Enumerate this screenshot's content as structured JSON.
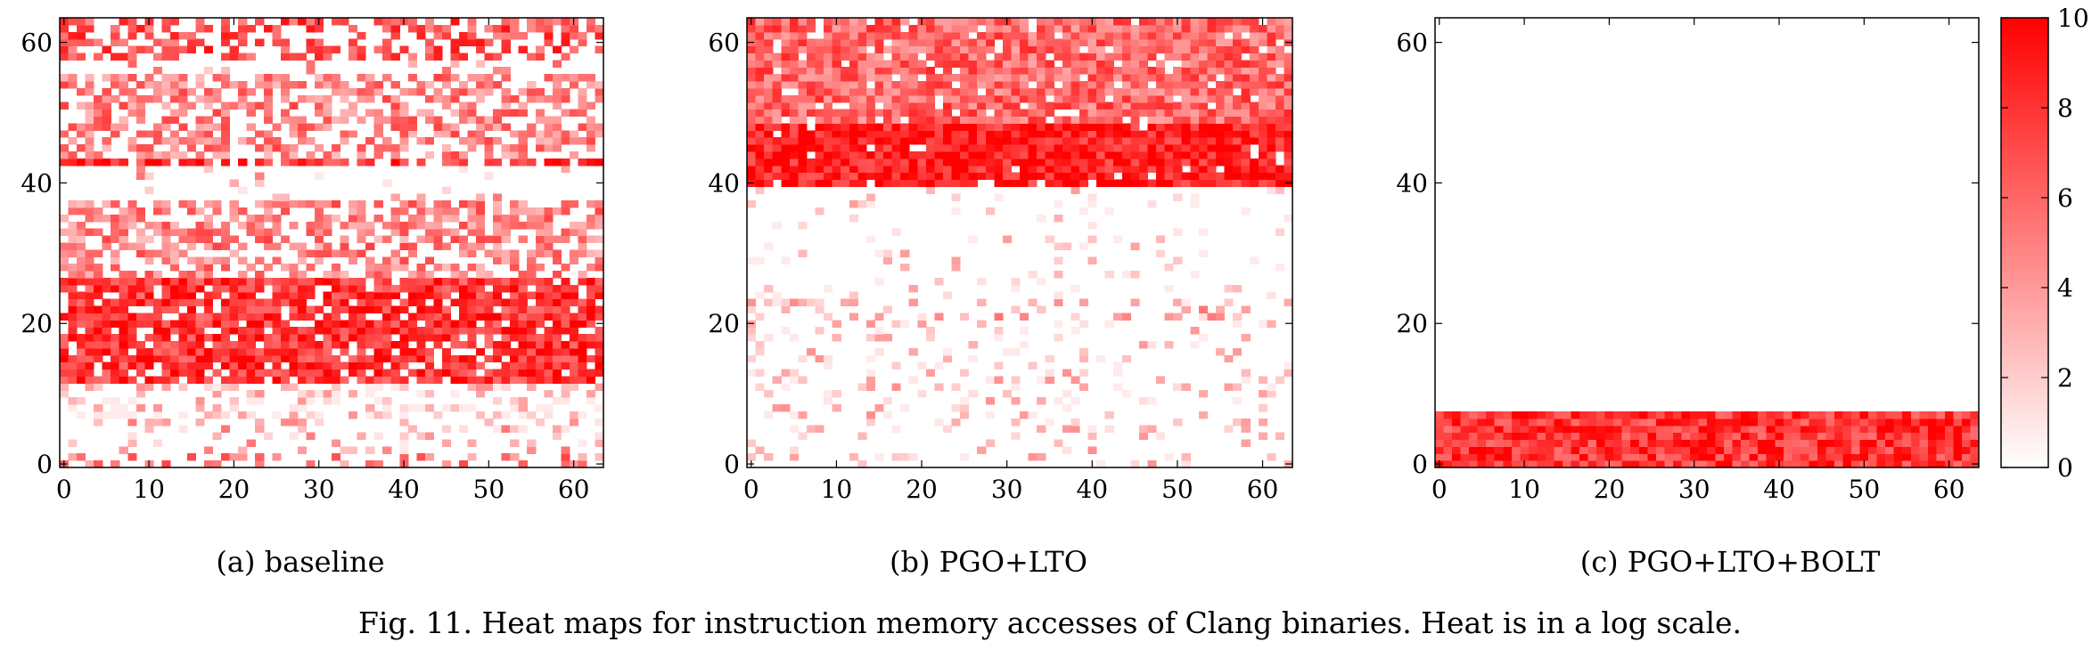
{
  "caption": "Fig. 11.  Heat maps for instruction memory accesses of Clang binaries. Heat is in a log scale.",
  "colorbar": {
    "min": 0,
    "max": 10,
    "ticks": [
      "0",
      "2",
      "4",
      "6",
      "8",
      "10"
    ],
    "low_color": "#ffffff",
    "high_color": "#ff0000"
  },
  "chart_data": [
    {
      "type": "heatmap",
      "subcaption": "(a) baseline",
      "x_range": [
        0,
        63
      ],
      "y_range": [
        0,
        63
      ],
      "x_ticks": [
        "0",
        "10",
        "20",
        "30",
        "40",
        "50",
        "60"
      ],
      "y_ticks": [
        "0",
        "20",
        "40",
        "60"
      ],
      "value_range": [
        0,
        10
      ],
      "row_profile": [
        {
          "rows": [
            0,
            1
          ],
          "density": 0.3,
          "mean": 5
        },
        {
          "rows": [
            2,
            6
          ],
          "density": 0.2,
          "mean": 3
        },
        {
          "rows": [
            7,
            11
          ],
          "density": 0.35,
          "mean": 2
        },
        {
          "rows": [
            12,
            26
          ],
          "density": 0.85,
          "mean": 8
        },
        {
          "rows": [
            27,
            37
          ],
          "density": 0.6,
          "mean": 5
        },
        {
          "rows": [
            38,
            42
          ],
          "density": 0.08,
          "mean": 3
        },
        {
          "rows": [
            43,
            43
          ],
          "density": 0.6,
          "mean": 8
        },
        {
          "rows": [
            44,
            55
          ],
          "density": 0.55,
          "mean": 5
        },
        {
          "rows": [
            56,
            57
          ],
          "density": 0.1,
          "mean": 4
        },
        {
          "rows": [
            58,
            63
          ],
          "density": 0.6,
          "mean": 7
        }
      ]
    },
    {
      "type": "heatmap",
      "subcaption": "(b) PGO+LTO",
      "x_range": [
        0,
        63
      ],
      "y_range": [
        0,
        63
      ],
      "x_ticks": [
        "0",
        "10",
        "20",
        "30",
        "40",
        "50",
        "60"
      ],
      "y_ticks": [
        "0",
        "20",
        "40",
        "60"
      ],
      "value_range": [
        0,
        10
      ],
      "row_profile": [
        {
          "rows": [
            0,
            9
          ],
          "density": 0.15,
          "mean": 2
        },
        {
          "rows": [
            10,
            20
          ],
          "density": 0.2,
          "mean": 2
        },
        {
          "rows": [
            21,
            23
          ],
          "density": 0.25,
          "mean": 3
        },
        {
          "rows": [
            24,
            39
          ],
          "density": 0.1,
          "mean": 1.5
        },
        {
          "rows": [
            40,
            48
          ],
          "density": 0.97,
          "mean": 9
        },
        {
          "rows": [
            49,
            63
          ],
          "density": 0.9,
          "mean": 6
        }
      ]
    },
    {
      "type": "heatmap",
      "subcaption": "(c) PGO+LTO+BOLT",
      "x_range": [
        0,
        63
      ],
      "y_range": [
        0,
        63
      ],
      "x_ticks": [
        "0",
        "10",
        "20",
        "30",
        "40",
        "50",
        "60"
      ],
      "y_ticks": [
        "0",
        "20",
        "40",
        "60"
      ],
      "value_range": [
        0,
        10
      ],
      "row_profile": [
        {
          "rows": [
            0,
            7
          ],
          "density": 1.0,
          "mean": 8
        },
        {
          "rows": [
            8,
            63
          ],
          "density": 0.0,
          "mean": 0
        }
      ]
    }
  ]
}
